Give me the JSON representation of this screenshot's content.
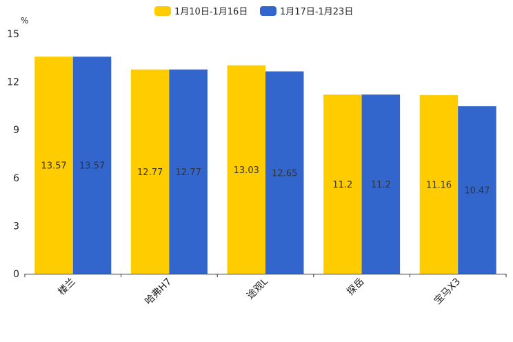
{
  "chart_data": {
    "type": "bar",
    "title": "",
    "xlabel": "",
    "ylabel": "%",
    "ylim": [
      0,
      15
    ],
    "yticks": [
      0,
      3,
      6,
      9,
      12,
      15
    ],
    "grid": false,
    "legend_position": "top-center",
    "categories": [
      "楼兰",
      "哈弗H7",
      "途观L",
      "探岳",
      "宝马X3"
    ],
    "series": [
      {
        "name": "1月10日-1月16日",
        "color": "#ffcc00",
        "values": [
          13.57,
          12.77,
          13.03,
          11.2,
          11.16
        ]
      },
      {
        "name": "1月17日-1月23日",
        "color": "#3366cc",
        "values": [
          13.57,
          12.77,
          12.65,
          11.2,
          10.47
        ]
      }
    ]
  }
}
